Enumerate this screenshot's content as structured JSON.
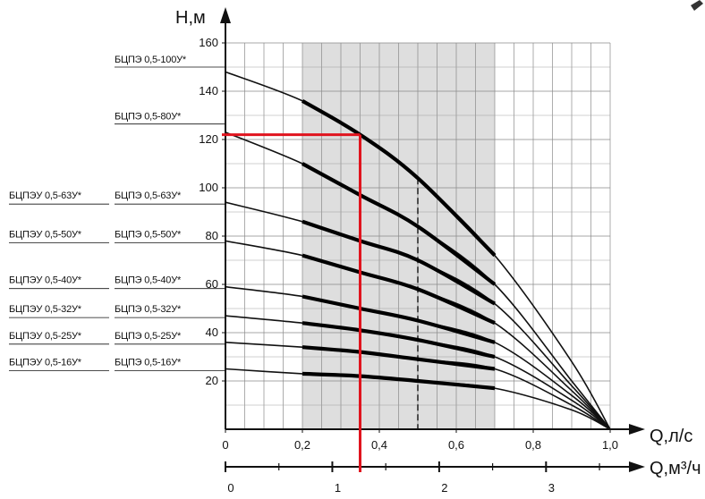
{
  "chart_data": {
    "type": "line",
    "title": "",
    "ylabel": "Н,м",
    "xlabel": "Q,л/с",
    "x2label": "Q,м³/ч",
    "ylim": [
      0,
      160
    ],
    "xlim": [
      0,
      1.0
    ],
    "x2lim": [
      0,
      3.6
    ],
    "yticks": [
      "20",
      "40",
      "60",
      "80",
      "100",
      "120",
      "140",
      "160"
    ],
    "xticks": [
      "0",
      "0,2",
      "0,4",
      "0,6",
      "0,8",
      "1,0"
    ],
    "x2ticks": [
      "0",
      "1",
      "2",
      "3"
    ],
    "grid": true,
    "recommended_zone": {
      "x_from": 0.2,
      "x_to": 0.7,
      "dashed_x": 0.5
    },
    "operating_point": {
      "q": 0.35,
      "h": 122
    },
    "series": [
      {
        "name": "БЦПЭ 0,5-100У*",
        "label_left": "",
        "x": [
          0,
          0.2,
          0.35,
          0.5,
          0.7,
          0.9,
          1.0
        ],
        "y": [
          148,
          136,
          122,
          104,
          72,
          28,
          0
        ]
      },
      {
        "name": "БЦПЭ 0,5-80У*",
        "label_left": "",
        "x": [
          0,
          0.2,
          0.35,
          0.5,
          0.7,
          0.9,
          1.0
        ],
        "y": [
          123,
          110,
          97,
          84,
          60,
          20,
          0
        ]
      },
      {
        "name": "БЦПЭ 0,5-63У*",
        "label_left": "БЦПЭУ 0,5-63У*",
        "x": [
          0,
          0.2,
          0.35,
          0.5,
          0.7,
          0.9,
          1.0
        ],
        "y": [
          94,
          86,
          78,
          70,
          52,
          18,
          0
        ]
      },
      {
        "name": "БЦПЭ 0,5-50У*",
        "label_left": "БЦПЭУ 0,5-50У*",
        "x": [
          0,
          0.2,
          0.35,
          0.5,
          0.7,
          0.9,
          1.0
        ],
        "y": [
          78,
          72,
          65,
          58,
          44,
          16,
          0
        ]
      },
      {
        "name": "БЦПЭ 0,5-40У*",
        "label_left": "БЦПЭУ 0,5-40У*",
        "x": [
          0,
          0.2,
          0.35,
          0.5,
          0.7,
          0.9,
          1.0
        ],
        "y": [
          59,
          55,
          50,
          45,
          36,
          14,
          0
        ]
      },
      {
        "name": "БЦПЭ 0,5-32У*",
        "label_left": "БЦПЭУ 0,5-32У*",
        "x": [
          0,
          0.2,
          0.35,
          0.5,
          0.7,
          0.9,
          1.0
        ],
        "y": [
          47,
          44,
          41,
          37,
          30,
          12,
          0
        ]
      },
      {
        "name": "БЦПЭ 0,5-25У*",
        "label_left": "БЦПЭУ 0,5-25У*",
        "x": [
          0,
          0.2,
          0.35,
          0.5,
          0.7,
          0.9,
          1.0
        ],
        "y": [
          36,
          34,
          32,
          29,
          25,
          10,
          0
        ]
      },
      {
        "name": "БЦПЭ 0,5-16У*",
        "label_left": "БЦПЭУ 0,5-16У*",
        "x": [
          0,
          0.2,
          0.35,
          0.5,
          0.7,
          0.9,
          1.0
        ],
        "y": [
          25,
          23,
          22,
          20,
          17,
          8,
          0
        ]
      }
    ]
  }
}
